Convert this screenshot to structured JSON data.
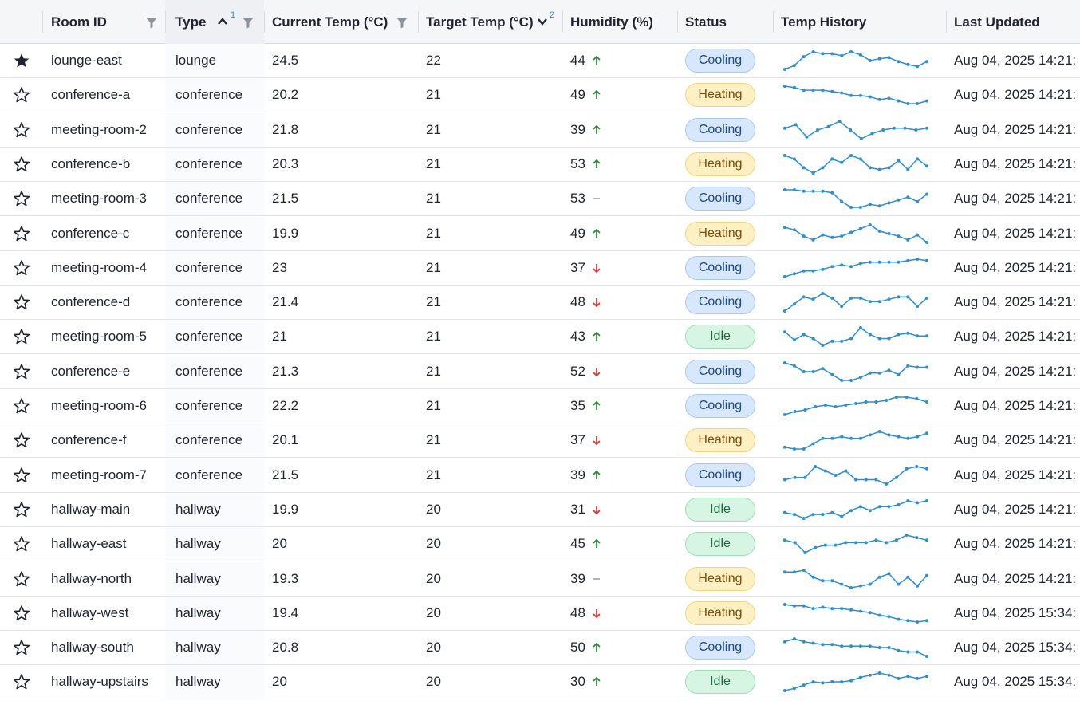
{
  "columns": {
    "room_id": "Room ID",
    "type": "Type",
    "type_sort_index": "1",
    "current_temp": "Current Temp (°C)",
    "target_temp": "Target Temp (°C)",
    "target_sort_index": "2",
    "humidity": "Humidity (%)",
    "status": "Status",
    "temp_history": "Temp History",
    "last_updated": "Last Updated"
  },
  "colors": {
    "accent": "#2a8cf0",
    "spark": "#2a8fd6",
    "trend_up": "#2d8b36",
    "trend_down": "#e0342c",
    "cooling": "#d8e8fc",
    "heating": "#fdf0c2",
    "idle": "#d6f6e3"
  },
  "icons": {
    "starred": "star-filled-icon",
    "unstarred": "star-outline-icon",
    "filter": "filter-icon",
    "sort_asc": "chevron-up-icon",
    "sort_desc": "chevron-down-icon",
    "trend_up": "arrow-up-icon",
    "trend_down": "arrow-down-icon",
    "trend_flat": "dash-icon"
  },
  "rows": [
    {
      "starred": true,
      "room_id": "lounge-east",
      "type": "lounge",
      "current_temp": "24.5",
      "target_temp": "22",
      "humidity": "44",
      "trend": "up",
      "status": "Cooling",
      "last_updated": "Aug 04, 2025 14:21:",
      "history": [
        22.8,
        23.2,
        24.1,
        24.6,
        24.4,
        24.4,
        24.2,
        24.6,
        24.3,
        23.7,
        23.9,
        24.0,
        23.6,
        23.3,
        23.1,
        23.6
      ]
    },
    {
      "starred": false,
      "room_id": "conference-a",
      "type": "conference",
      "current_temp": "20.2",
      "target_temp": "21",
      "humidity": "49",
      "trend": "up",
      "status": "Heating",
      "last_updated": "Aug 04, 2025 14:21:",
      "history": [
        21.8,
        21.7,
        21.5,
        21.5,
        21.5,
        21.4,
        21.3,
        21.1,
        21.1,
        21.0,
        20.8,
        20.9,
        20.7,
        20.5,
        20.5,
        20.7
      ]
    },
    {
      "starred": false,
      "room_id": "meeting-room-2",
      "type": "conference",
      "current_temp": "21.8",
      "target_temp": "21",
      "humidity": "39",
      "trend": "up",
      "status": "Cooling",
      "last_updated": "Aug 04, 2025 14:21:",
      "history": [
        21.6,
        21.8,
        21.1,
        21.5,
        21.7,
        22.0,
        21.5,
        21.0,
        21.3,
        21.5,
        21.6,
        21.6,
        21.5,
        21.6
      ]
    },
    {
      "starred": false,
      "room_id": "conference-b",
      "type": "conference",
      "current_temp": "20.3",
      "target_temp": "21",
      "humidity": "53",
      "trend": "up",
      "status": "Heating",
      "last_updated": "Aug 04, 2025 14:21:",
      "history": [
        21.6,
        21.4,
        20.9,
        20.6,
        20.9,
        21.4,
        21.2,
        21.6,
        21.4,
        20.9,
        20.8,
        20.9,
        21.3,
        20.8,
        21.4,
        21.0
      ]
    },
    {
      "starred": false,
      "room_id": "meeting-room-3",
      "type": "conference",
      "current_temp": "21.5",
      "target_temp": "21",
      "humidity": "53",
      "trend": "flat",
      "status": "Cooling",
      "last_updated": "Aug 04, 2025 14:21:",
      "history": [
        21.8,
        21.8,
        21.7,
        21.7,
        21.7,
        21.6,
        21.0,
        20.6,
        20.6,
        20.8,
        20.7,
        20.9,
        21.1,
        21.3,
        21.0,
        21.5
      ]
    },
    {
      "starred": false,
      "room_id": "conference-c",
      "type": "conference",
      "current_temp": "19.9",
      "target_temp": "21",
      "humidity": "49",
      "trend": "up",
      "status": "Heating",
      "last_updated": "Aug 04, 2025 14:21:",
      "history": [
        21.5,
        21.3,
        20.8,
        20.5,
        20.9,
        20.7,
        20.8,
        21.1,
        21.4,
        21.7,
        21.2,
        21.0,
        20.8,
        20.5,
        20.9,
        20.3
      ]
    },
    {
      "starred": false,
      "room_id": "meeting-room-4",
      "type": "conference",
      "current_temp": "23",
      "target_temp": "21",
      "humidity": "37",
      "trend": "down",
      "status": "Cooling",
      "last_updated": "Aug 04, 2025 14:21:",
      "history": [
        20.8,
        21.0,
        21.2,
        21.2,
        21.3,
        21.5,
        21.6,
        21.5,
        21.7,
        21.8,
        21.8,
        21.8,
        21.8,
        21.9,
        22.0,
        21.9
      ]
    },
    {
      "starred": false,
      "room_id": "conference-d",
      "type": "conference",
      "current_temp": "21.4",
      "target_temp": "21",
      "humidity": "48",
      "trend": "down",
      "status": "Cooling",
      "last_updated": "Aug 04, 2025 14:21:",
      "history": [
        20.6,
        21.2,
        21.8,
        21.6,
        22.1,
        21.7,
        21.0,
        21.7,
        21.7,
        21.4,
        21.4,
        21.6,
        21.8,
        21.8,
        21.0,
        21.7
      ]
    },
    {
      "starred": false,
      "room_id": "meeting-room-5",
      "type": "conference",
      "current_temp": "21",
      "target_temp": "21",
      "humidity": "43",
      "trend": "up",
      "status": "Idle",
      "last_updated": "Aug 04, 2025 14:21:",
      "history": [
        21.6,
        21.0,
        21.4,
        21.1,
        20.6,
        20.9,
        20.9,
        21.1,
        21.9,
        21.4,
        21.1,
        21.1,
        21.4,
        21.5,
        21.3,
        21.3
      ]
    },
    {
      "starred": false,
      "room_id": "conference-e",
      "type": "conference",
      "current_temp": "21.3",
      "target_temp": "21",
      "humidity": "52",
      "trend": "down",
      "status": "Cooling",
      "last_updated": "Aug 04, 2025 14:21:",
      "history": [
        21.9,
        21.7,
        21.3,
        21.3,
        21.5,
        21.1,
        20.7,
        20.7,
        20.9,
        21.2,
        21.2,
        21.4,
        21.1,
        21.7,
        21.6,
        21.6
      ]
    },
    {
      "starred": false,
      "room_id": "meeting-room-6",
      "type": "conference",
      "current_temp": "22.2",
      "target_temp": "21",
      "humidity": "35",
      "trend": "up",
      "status": "Cooling",
      "last_updated": "Aug 04, 2025 14:21:",
      "history": [
        21.0,
        21.2,
        21.3,
        21.5,
        21.6,
        21.5,
        21.6,
        21.7,
        21.8,
        21.8,
        21.9,
        22.1,
        22.1,
        22.0,
        21.8
      ]
    },
    {
      "starred": false,
      "room_id": "conference-f",
      "type": "conference",
      "current_temp": "20.1",
      "target_temp": "21",
      "humidity": "37",
      "trend": "down",
      "status": "Heating",
      "last_updated": "Aug 04, 2025 14:21:",
      "history": [
        20.4,
        20.3,
        20.3,
        20.6,
        20.9,
        20.9,
        21.0,
        20.9,
        20.9,
        21.1,
        21.3,
        21.1,
        21.0,
        20.9,
        21.0,
        21.2
      ]
    },
    {
      "starred": false,
      "room_id": "meeting-room-7",
      "type": "conference",
      "current_temp": "21.5",
      "target_temp": "21",
      "humidity": "39",
      "trend": "up",
      "status": "Cooling",
      "last_updated": "Aug 04, 2025 14:21:",
      "history": [
        21.0,
        21.1,
        21.1,
        21.6,
        21.4,
        21.2,
        21.4,
        21.0,
        21.0,
        21.0,
        20.8,
        21.1,
        21.5,
        21.6,
        21.5
      ]
    },
    {
      "starred": false,
      "room_id": "hallway-main",
      "type": "hallway",
      "current_temp": "19.9",
      "target_temp": "20",
      "humidity": "31",
      "trend": "down",
      "status": "Idle",
      "last_updated": "Aug 04, 2025 14:21:",
      "history": [
        19.8,
        19.7,
        19.5,
        19.7,
        19.7,
        19.8,
        19.6,
        19.9,
        20.1,
        19.9,
        20.1,
        20.1,
        20.2,
        20.4,
        20.3,
        20.4
      ]
    },
    {
      "starred": false,
      "room_id": "hallway-east",
      "type": "hallway",
      "current_temp": "20",
      "target_temp": "20",
      "humidity": "45",
      "trend": "up",
      "status": "Idle",
      "last_updated": "Aug 04, 2025 14:21:",
      "history": [
        20.4,
        20.3,
        19.9,
        20.1,
        20.2,
        20.2,
        20.3,
        20.3,
        20.3,
        20.4,
        20.3,
        20.4,
        20.6,
        20.5,
        20.4
      ]
    },
    {
      "starred": false,
      "room_id": "hallway-north",
      "type": "hallway",
      "current_temp": "19.3",
      "target_temp": "20",
      "humidity": "39",
      "trend": "flat",
      "status": "Heating",
      "last_updated": "Aug 04, 2025 14:21:",
      "history": [
        20.1,
        20.1,
        20.2,
        19.8,
        19.6,
        19.6,
        19.4,
        19.2,
        19.3,
        19.4,
        19.8,
        20.0,
        19.4,
        19.8,
        19.3,
        19.9
      ]
    },
    {
      "starred": false,
      "room_id": "hallway-west",
      "type": "hallway",
      "current_temp": "19.4",
      "target_temp": "20",
      "humidity": "48",
      "trend": "down",
      "status": "Heating",
      "last_updated": "Aug 04, 2025 15:34:",
      "history": [
        20.4,
        20.3,
        20.3,
        20.1,
        20.2,
        20.1,
        20.1,
        20.0,
        19.9,
        19.8,
        19.6,
        19.5,
        19.3,
        19.2,
        19.1,
        19.2
      ]
    },
    {
      "starred": false,
      "room_id": "hallway-south",
      "type": "hallway",
      "current_temp": "20.8",
      "target_temp": "20",
      "humidity": "50",
      "trend": "up",
      "status": "Cooling",
      "last_updated": "Aug 04, 2025 15:34:",
      "history": [
        21.4,
        21.6,
        21.4,
        21.3,
        21.2,
        21.2,
        21.1,
        21.1,
        21.1,
        21.1,
        21.0,
        21.0,
        20.8,
        20.7,
        20.7,
        20.4
      ]
    },
    {
      "starred": false,
      "room_id": "hallway-upstairs",
      "type": "hallway",
      "current_temp": "20",
      "target_temp": "20",
      "humidity": "30",
      "trend": "up",
      "status": "Idle",
      "last_updated": "Aug 04, 2025 15:34:",
      "history": [
        19.3,
        19.5,
        19.8,
        20.1,
        20.0,
        20.1,
        20.1,
        20.2,
        20.5,
        20.7,
        20.9,
        20.7,
        20.4,
        20.6,
        20.4,
        20.6
      ]
    }
  ]
}
